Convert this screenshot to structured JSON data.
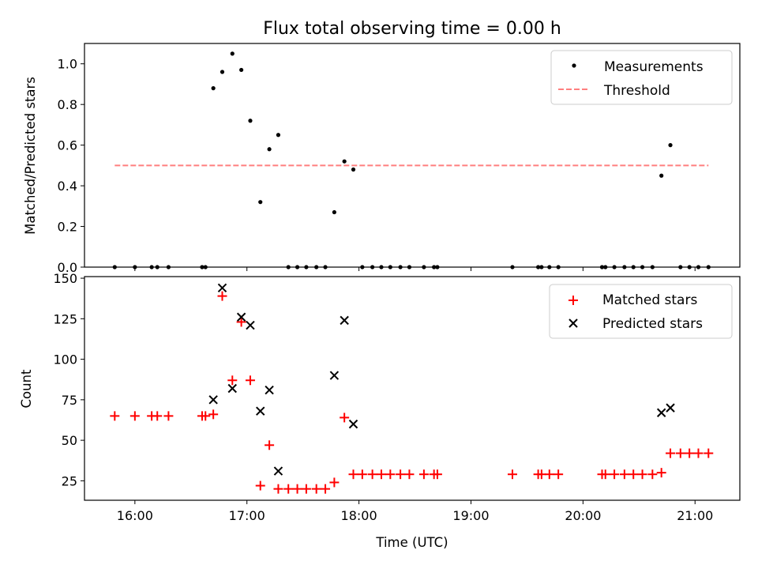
{
  "title": "Flux total observing time = 0.00 h",
  "chart_data": [
    {
      "type": "scatter",
      "ylabel": "Matched/Predicted stars",
      "xlim": [
        15.55,
        21.4
      ],
      "ylim": [
        0,
        1.1
      ],
      "yticks": [
        "0.0",
        "0.2",
        "0.4",
        "0.6",
        "0.8",
        "1.0"
      ],
      "grid": false,
      "legend_position": "top-right",
      "legend": [
        "Measurements",
        "Threshold"
      ],
      "threshold": {
        "value": 0.5,
        "x_range": [
          15.82,
          21.12
        ],
        "color": "#ff7f7f",
        "style": "dashed"
      },
      "series": [
        {
          "color": "#000000",
          "points": [
            [
              15.82,
              0
            ],
            [
              16.0,
              0
            ],
            [
              16.15,
              0
            ],
            [
              16.2,
              0
            ],
            [
              16.3,
              0
            ],
            [
              16.6,
              0
            ],
            [
              16.63,
              0
            ],
            [
              16.7,
              0.88
            ],
            [
              16.78,
              0.96
            ],
            [
              16.87,
              1.05
            ],
            [
              16.95,
              0.97
            ],
            [
              17.03,
              0.72
            ],
            [
              17.12,
              0.32
            ],
            [
              17.2,
              0.58
            ],
            [
              17.28,
              0.65
            ],
            [
              17.37,
              0
            ],
            [
              17.45,
              0
            ],
            [
              17.53,
              0
            ],
            [
              17.62,
              0
            ],
            [
              17.7,
              0
            ],
            [
              17.78,
              0.27
            ],
            [
              17.87,
              0.52
            ],
            [
              17.95,
              0.48
            ],
            [
              18.03,
              0
            ],
            [
              18.12,
              0
            ],
            [
              18.2,
              0
            ],
            [
              18.28,
              0
            ],
            [
              18.37,
              0
            ],
            [
              18.45,
              0
            ],
            [
              18.58,
              0
            ],
            [
              18.67,
              0
            ],
            [
              18.7,
              0
            ],
            [
              19.37,
              0
            ],
            [
              19.6,
              0
            ],
            [
              19.63,
              0
            ],
            [
              19.7,
              0
            ],
            [
              19.78,
              0
            ],
            [
              20.17,
              0
            ],
            [
              20.2,
              0
            ],
            [
              20.28,
              0
            ],
            [
              20.37,
              0
            ],
            [
              20.45,
              0
            ],
            [
              20.53,
              0
            ],
            [
              20.62,
              0
            ],
            [
              20.7,
              0.45
            ],
            [
              20.78,
              0.6
            ],
            [
              20.87,
              0
            ],
            [
              20.95,
              0
            ],
            [
              21.03,
              0
            ],
            [
              21.12,
              0
            ]
          ]
        }
      ]
    },
    {
      "type": "scatter",
      "xlabel": "Time (UTC)",
      "ylabel": "Count",
      "xlim": [
        15.55,
        21.4
      ],
      "ylim": [
        13,
        151
      ],
      "yticks": [
        "25",
        "50",
        "75",
        "100",
        "125",
        "150"
      ],
      "xticks": [
        {
          "value": 16,
          "label": "16:00"
        },
        {
          "value": 17,
          "label": "17:00"
        },
        {
          "value": 18,
          "label": "18:00"
        },
        {
          "value": 19,
          "label": "19:00"
        },
        {
          "value": 20,
          "label": "20:00"
        },
        {
          "value": 21,
          "label": "21:00"
        }
      ],
      "grid": false,
      "legend_position": "top-right",
      "legend": [
        "Matched stars",
        "Predicted stars"
      ],
      "series": [
        {
          "marker": "plus",
          "color": "#ff0000",
          "points": [
            [
              15.82,
              65
            ],
            [
              16.0,
              65
            ],
            [
              16.15,
              65
            ],
            [
              16.2,
              65
            ],
            [
              16.3,
              65
            ],
            [
              16.6,
              65
            ],
            [
              16.63,
              65
            ],
            [
              16.7,
              66
            ],
            [
              16.78,
              139
            ],
            [
              16.87,
              87
            ],
            [
              16.95,
              123
            ],
            [
              17.03,
              87
            ],
            [
              17.12,
              22
            ],
            [
              17.2,
              47
            ],
            [
              17.28,
              20
            ],
            [
              17.37,
              20
            ],
            [
              17.45,
              20
            ],
            [
              17.53,
              20
            ],
            [
              17.62,
              20
            ],
            [
              17.7,
              20
            ],
            [
              17.78,
              24
            ],
            [
              17.87,
              64
            ],
            [
              17.95,
              29
            ],
            [
              18.03,
              29
            ],
            [
              18.12,
              29
            ],
            [
              18.2,
              29
            ],
            [
              18.28,
              29
            ],
            [
              18.37,
              29
            ],
            [
              18.45,
              29
            ],
            [
              18.58,
              29
            ],
            [
              18.67,
              29
            ],
            [
              18.7,
              29
            ],
            [
              19.37,
              29
            ],
            [
              19.6,
              29
            ],
            [
              19.63,
              29
            ],
            [
              19.7,
              29
            ],
            [
              19.78,
              29
            ],
            [
              20.17,
              29
            ],
            [
              20.2,
              29
            ],
            [
              20.28,
              29
            ],
            [
              20.37,
              29
            ],
            [
              20.45,
              29
            ],
            [
              20.53,
              29
            ],
            [
              20.62,
              29
            ],
            [
              20.7,
              30
            ],
            [
              20.78,
              42
            ],
            [
              20.87,
              42
            ],
            [
              20.95,
              42
            ],
            [
              21.03,
              42
            ],
            [
              21.12,
              42
            ]
          ]
        },
        {
          "marker": "x",
          "color": "#000000",
          "points": [
            [
              16.7,
              75
            ],
            [
              16.78,
              144
            ],
            [
              16.87,
              82
            ],
            [
              16.95,
              126
            ],
            [
              17.03,
              121
            ],
            [
              17.12,
              68
            ],
            [
              17.2,
              81
            ],
            [
              17.28,
              31
            ],
            [
              17.78,
              90
            ],
            [
              17.87,
              124
            ],
            [
              17.95,
              60
            ],
            [
              20.7,
              67
            ],
            [
              20.78,
              70
            ]
          ]
        }
      ]
    }
  ]
}
